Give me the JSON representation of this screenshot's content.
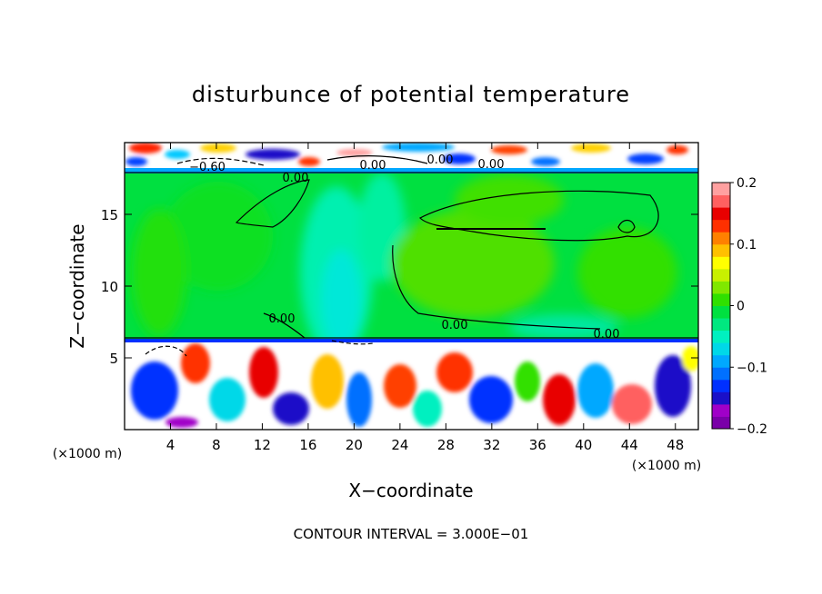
{
  "chart_data": {
    "type": "heatmap",
    "title": "disturbunce of potential temperature",
    "xlabel": "X−coordinate",
    "ylabel": "Z−coordinate",
    "x_unit": "(×1000 m)",
    "y_unit": "(×1000 m)",
    "xlim": [
      0,
      50
    ],
    "ylim": [
      0,
      20
    ],
    "x_ticks": [
      4,
      8,
      12,
      16,
      20,
      24,
      28,
      32,
      36,
      40,
      44,
      48
    ],
    "y_ticks": [
      5,
      10,
      15
    ],
    "colorbar": {
      "min": -0.2,
      "max": 0.2,
      "ticks": [
        0.2,
        0.1,
        0,
        -0.1,
        -0.2
      ],
      "tick_labels": [
        "0.2",
        "0.1",
        "0",
        "−0.1",
        "−0.2"
      ],
      "colors": [
        "#7a00a8",
        "#a000c8",
        "#1a10c8",
        "#0030ff",
        "#0070ff",
        "#00a8ff",
        "#00d8e8",
        "#00f0c0",
        "#00e880",
        "#00e040",
        "#30e000",
        "#80e800",
        "#c8f000",
        "#ffff00",
        "#ffc000",
        "#ff8000",
        "#ff3000",
        "#e80000",
        "#ff6060",
        "#ffa0a0"
      ]
    },
    "contour_labels": [
      "0.00",
      "0.00",
      "0.00",
      "0.00",
      "0.00",
      "0.00",
      "0.00",
      "−0.60"
    ],
    "footer": "CONTOUR INTERVAL = 3.000E−01"
  }
}
